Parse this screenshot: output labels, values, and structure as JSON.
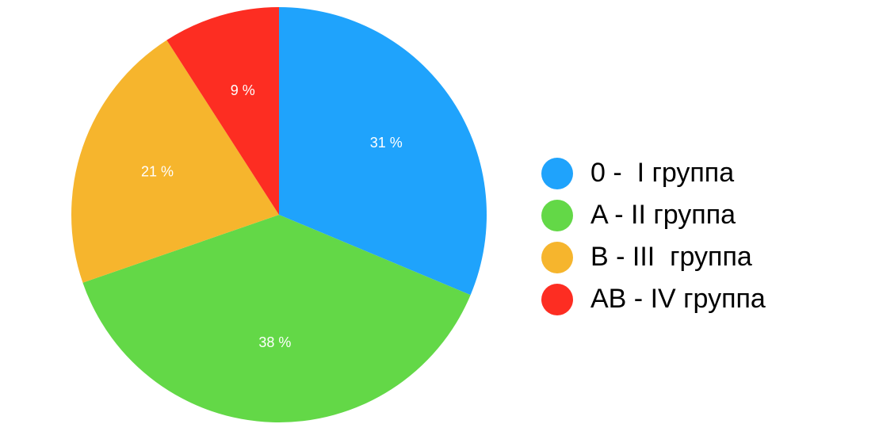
{
  "chart_data": {
    "type": "pie",
    "categories": [
      "0 -  I группа",
      "A - II группа",
      "B - III  группа",
      "AB - IV группа"
    ],
    "values": [
      31,
      38,
      21,
      9
    ],
    "value_labels": [
      "31 %",
      "38 %",
      "21 %",
      "9 %"
    ],
    "colors": [
      "#1fa3fc",
      "#63d847",
      "#f6b52d",
      "#fd2d22"
    ],
    "legend": "right"
  }
}
